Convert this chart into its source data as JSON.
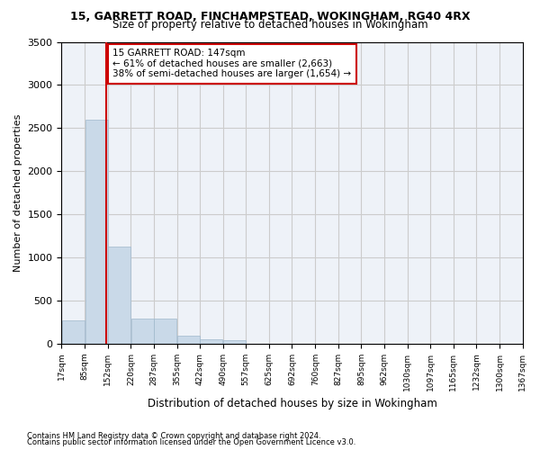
{
  "title1": "15, GARRETT ROAD, FINCHAMPSTEAD, WOKINGHAM, RG40 4RX",
  "title2": "Size of property relative to detached houses in Wokingham",
  "xlabel": "Distribution of detached houses by size in Wokingham",
  "ylabel": "Number of detached properties",
  "bar_color": "#c9d9e8",
  "bar_edge_color": "#a0b8cc",
  "annotation_text": "15 GARRETT ROAD: 147sqm\n← 61% of detached houses are smaller (2,663)\n38% of semi-detached houses are larger (1,654) →",
  "property_line_x": 147,
  "property_line_color": "#cc0000",
  "annotation_box_color": "#cc0000",
  "bin_edges": [
    17,
    85,
    152,
    220,
    287,
    355,
    422,
    490,
    557,
    625,
    692,
    760,
    827,
    895,
    962,
    1030,
    1097,
    1165,
    1232,
    1300,
    1367
  ],
  "tick_labels": [
    "17sqm",
    "85sqm",
    "152sqm",
    "220sqm",
    "287sqm",
    "355sqm",
    "422sqm",
    "490sqm",
    "557sqm",
    "625sqm",
    "692sqm",
    "760sqm",
    "827sqm",
    "895sqm",
    "962sqm",
    "1030sqm",
    "1097sqm",
    "1165sqm",
    "1232sqm",
    "1300sqm",
    "1367sqm"
  ],
  "bar_heights": [
    270,
    2600,
    1130,
    290,
    290,
    90,
    55,
    40,
    0,
    0,
    0,
    0,
    0,
    0,
    0,
    0,
    0,
    0,
    0,
    0
  ],
  "ylim": [
    0,
    3500
  ],
  "yticks": [
    0,
    500,
    1000,
    1500,
    2000,
    2500,
    3000,
    3500
  ],
  "grid_color": "#cccccc",
  "bg_color": "#eef2f8",
  "footer1": "Contains HM Land Registry data © Crown copyright and database right 2024.",
  "footer2": "Contains public sector information licensed under the Open Government Licence v3.0."
}
